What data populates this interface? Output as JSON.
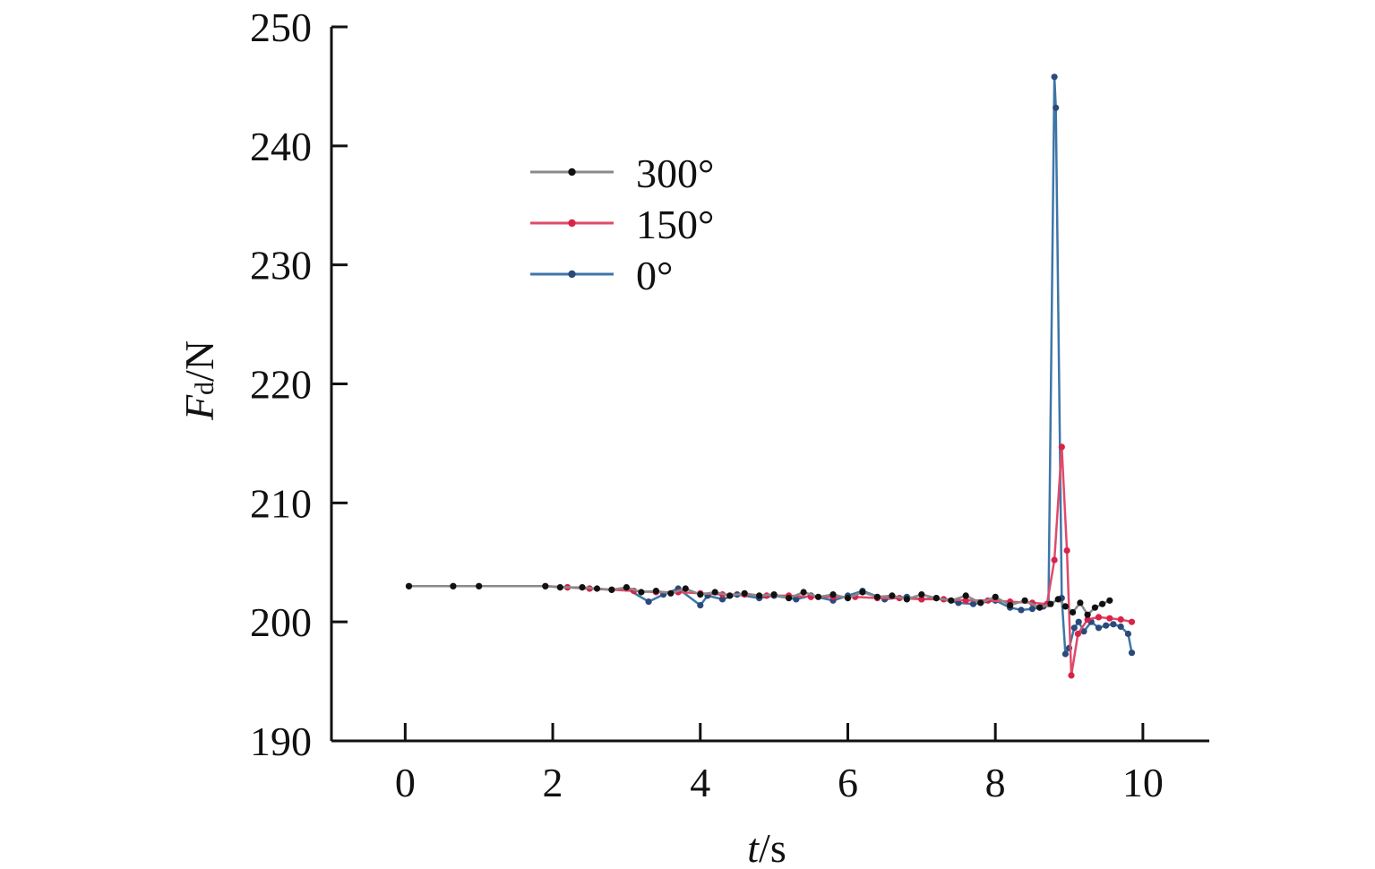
{
  "chart_data": {
    "type": "line",
    "title": "",
    "xlabel": {
      "var": "t",
      "unit": "/s"
    },
    "ylabel": {
      "var": "F",
      "sub": "d",
      "unit": "/N"
    },
    "xlim": [
      -1,
      10.9
    ],
    "ylim": [
      190,
      250
    ],
    "xticks": [
      0,
      2,
      4,
      6,
      8,
      10
    ],
    "yticks": [
      190,
      200,
      210,
      220,
      230,
      240,
      250
    ],
    "grid": false,
    "legend_position": "top-left",
    "series": [
      {
        "name": "300°",
        "color": "#111111",
        "line_color": "#8a8a8a",
        "x": [
          0.05,
          0.65,
          1.0,
          1.9,
          2.1,
          2.4,
          2.6,
          2.8,
          3.0,
          3.2,
          3.4,
          3.6,
          3.8,
          4.0,
          4.2,
          4.4,
          4.6,
          4.8,
          5.0,
          5.2,
          5.4,
          5.6,
          5.8,
          6.0,
          6.2,
          6.4,
          6.6,
          6.8,
          7.0,
          7.2,
          7.4,
          7.6,
          7.8,
          8.0,
          8.2,
          8.4,
          8.6,
          8.75,
          8.85,
          8.95,
          9.05,
          9.15,
          9.25,
          9.35,
          9.45,
          9.55
        ],
        "y": [
          203.0,
          203.0,
          203.0,
          203.0,
          202.9,
          202.9,
          202.8,
          202.7,
          202.9,
          202.5,
          202.6,
          202.4,
          202.8,
          202.3,
          202.5,
          202.2,
          202.4,
          202.2,
          202.3,
          202.0,
          202.5,
          202.1,
          202.3,
          202.0,
          202.5,
          202.1,
          202.2,
          201.9,
          202.3,
          202.0,
          201.8,
          202.2,
          201.6,
          202.1,
          201.4,
          201.8,
          201.2,
          201.5,
          201.9,
          201.3,
          200.8,
          201.6,
          200.6,
          201.2,
          201.5,
          201.8
        ]
      },
      {
        "name": "150°",
        "color": "#d8234a",
        "line_color": "#e04a6a",
        "x": [
          0.05,
          0.65,
          1.0,
          1.9,
          2.2,
          2.5,
          2.8,
          3.1,
          3.4,
          3.7,
          4.0,
          4.3,
          4.6,
          4.9,
          5.2,
          5.5,
          5.8,
          6.1,
          6.4,
          6.7,
          7.0,
          7.3,
          7.6,
          7.9,
          8.2,
          8.5,
          8.7,
          8.8,
          8.9,
          8.97,
          9.03,
          9.12,
          9.25,
          9.4,
          9.55,
          9.7,
          9.85
        ],
        "y": [
          203.0,
          203.0,
          203.0,
          203.0,
          202.9,
          202.8,
          202.7,
          202.6,
          202.5,
          202.5,
          202.4,
          202.3,
          202.3,
          202.2,
          202.2,
          202.1,
          202.1,
          202.1,
          202.0,
          202.0,
          201.9,
          201.9,
          201.8,
          201.8,
          201.7,
          201.6,
          201.5,
          205.2,
          214.7,
          206.0,
          195.5,
          199.0,
          200.2,
          200.4,
          200.3,
          200.2,
          200.0
        ]
      },
      {
        "name": "0°",
        "color": "#2b4a7a",
        "line_color": "#3d76a8",
        "x": [
          0.05,
          0.65,
          1.0,
          1.9,
          2.2,
          2.5,
          2.8,
          3.0,
          3.3,
          3.5,
          3.7,
          4.0,
          4.1,
          4.3,
          4.5,
          4.8,
          5.0,
          5.3,
          5.5,
          5.8,
          6.0,
          6.2,
          6.5,
          6.8,
          7.0,
          7.2,
          7.5,
          7.7,
          8.0,
          8.2,
          8.35,
          8.5,
          8.65,
          8.72,
          8.8,
          8.82,
          8.9,
          8.95,
          9.0,
          9.07,
          9.13,
          9.2,
          9.3,
          9.4,
          9.5,
          9.6,
          9.7,
          9.8,
          9.85
        ],
        "y": [
          203.0,
          203.0,
          203.0,
          203.0,
          202.9,
          202.8,
          202.7,
          202.8,
          201.7,
          202.3,
          202.8,
          201.4,
          202.2,
          201.9,
          202.3,
          202.0,
          202.2,
          201.9,
          202.2,
          201.8,
          202.2,
          202.6,
          201.9,
          202.1,
          201.9,
          202.0,
          201.6,
          201.5,
          201.8,
          201.2,
          201.0,
          201.1,
          201.3,
          201.5,
          245.8,
          243.2,
          202.0,
          197.3,
          197.8,
          199.5,
          200.0,
          199.2,
          200.0,
          199.5,
          199.7,
          199.8,
          199.6,
          199.0,
          197.4
        ]
      }
    ]
  }
}
